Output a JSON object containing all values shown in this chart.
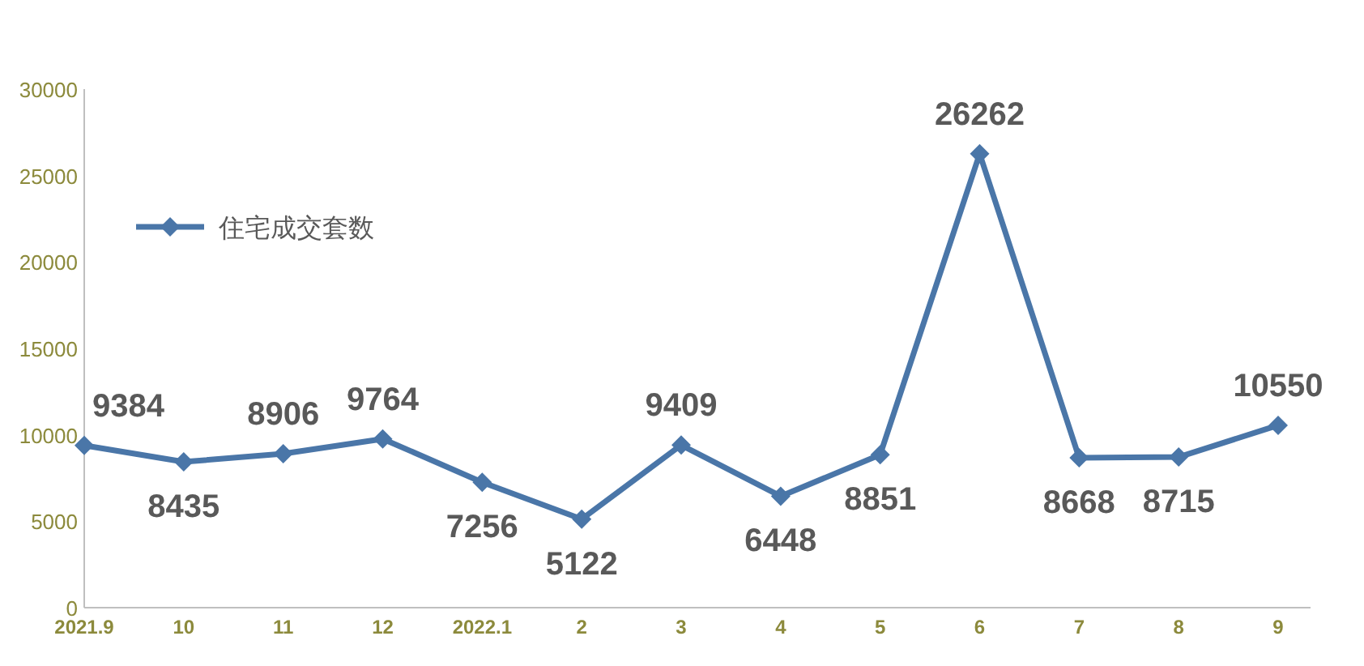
{
  "chart_data": {
    "type": "line",
    "categories": [
      "2021.9",
      "10",
      "11",
      "12",
      "2022.1",
      "2",
      "3",
      "4",
      "5",
      "6",
      "7",
      "8",
      "9"
    ],
    "series": [
      {
        "name": "住宅成交套数",
        "color": "#4a76a8",
        "values": [
          9384,
          8435,
          8906,
          9764,
          7256,
          5122,
          9409,
          6448,
          8851,
          26262,
          8668,
          8715,
          10550
        ]
      }
    ],
    "ylim": [
      0,
      30000
    ],
    "yticks": [
      0,
      5000,
      10000,
      15000,
      20000,
      25000,
      30000
    ],
    "grid": false,
    "legend": "top left",
    "marker": "diamond",
    "line_style": "solid",
    "data_labels": true
  }
}
